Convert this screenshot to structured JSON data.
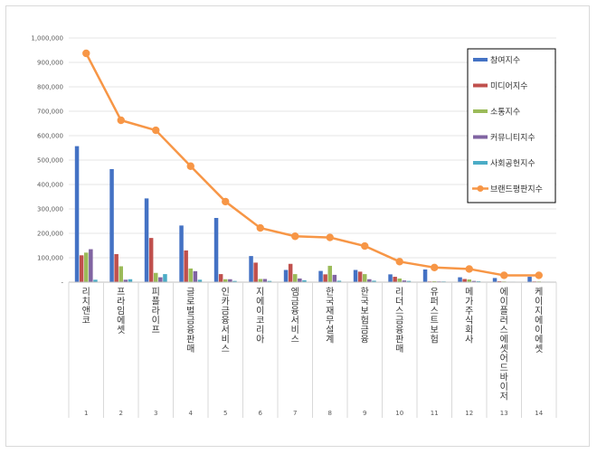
{
  "chart_data": {
    "type": "bar",
    "title": "",
    "xlabel": "",
    "ylabel": "",
    "ylim": [
      0,
      1000000
    ],
    "y_ticks": [
      "-",
      "100,000",
      "200,000",
      "300,000",
      "400,000",
      "500,000",
      "600,000",
      "700,000",
      "800,000",
      "900,000",
      "1,000,000"
    ],
    "indices": [
      "1",
      "2",
      "3",
      "4",
      "5",
      "6",
      "7",
      "8",
      "9",
      "10",
      "11",
      "12",
      "13",
      "14"
    ],
    "categories": [
      "리치앤코",
      "프라임에셋",
      "피플라이프",
      "글로벌금융판매",
      "인카금융서비스",
      "지에이코리아",
      "엠금융서비스",
      "한국재무설계",
      "한국보험금융",
      "리더스금융판매",
      "유퍼스트보험",
      "메가주식회사",
      "에이플러스에셋어드바이저",
      "케이지에이에셋"
    ],
    "series": [
      {
        "name": "참여지수",
        "kind": "bar",
        "color": "#4472c4",
        "values": [
          557000,
          463000,
          343000,
          232000,
          263000,
          107000,
          50000,
          46000,
          50000,
          32000,
          52000,
          20000,
          17000,
          22000
        ]
      },
      {
        "name": "미디어지수",
        "kind": "bar",
        "color": "#c0504d",
        "values": [
          110000,
          115000,
          181000,
          130000,
          33000,
          80000,
          75000,
          32000,
          43000,
          22000,
          3000,
          13000,
          4000,
          3000
        ]
      },
      {
        "name": "소통지수",
        "kind": "bar",
        "color": "#9bbb59",
        "values": [
          121000,
          65000,
          38000,
          56000,
          12000,
          13000,
          33000,
          67000,
          33000,
          15000,
          4000,
          11000,
          3000,
          3000
        ]
      },
      {
        "name": "커뮤니티지수",
        "kind": "bar",
        "color": "#8064a2",
        "values": [
          135000,
          10000,
          20000,
          45000,
          12000,
          13000,
          15000,
          30000,
          12000,
          7000,
          3000,
          5000,
          2000,
          2000
        ]
      },
      {
        "name": "사회공헌지수",
        "kind": "bar",
        "color": "#4bacc6",
        "values": [
          10000,
          12000,
          33000,
          10000,
          5000,
          5000,
          8000,
          6000,
          6000,
          5000,
          3000,
          4000,
          2000,
          2000
        ]
      },
      {
        "name": "브랜드평판지수",
        "kind": "line",
        "color": "#f79646",
        "values": [
          937000,
          663000,
          622000,
          475000,
          330000,
          222000,
          188000,
          183000,
          148000,
          84000,
          60000,
          54000,
          28000,
          28000
        ]
      }
    ]
  }
}
